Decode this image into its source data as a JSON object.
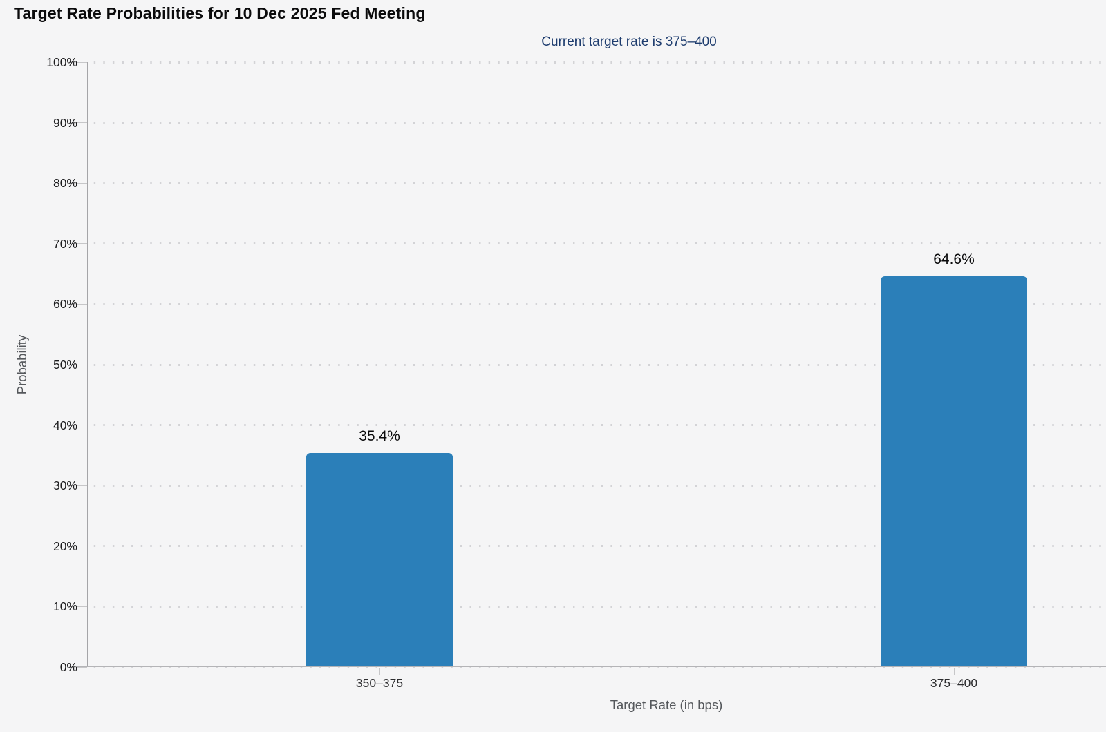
{
  "chart_data": {
    "type": "bar",
    "title": "Target Rate Probabilities for 10 Dec 2025 Fed Meeting",
    "subtitle": "Current target rate is 375–400",
    "categories": [
      "350–375",
      "375–400"
    ],
    "values": [
      35.4,
      64.6
    ],
    "value_labels": [
      "35.4%",
      "64.6%"
    ],
    "xlabel": "Target Rate (in bps)",
    "ylabel": "Probability",
    "ylim": [
      0,
      100
    ],
    "ytick_step": 10,
    "ytick_suffix": "%",
    "legend": "none",
    "grid": "horizontal-dotted",
    "colors": {
      "bar": "#2b7fb9",
      "background": "#f5f5f6",
      "title_text": "#0b0b0c",
      "subtitle_text": "#1d3c6e",
      "axis_title_text": "#55585c",
      "tick_label_text": "#1c1c1e"
    }
  }
}
